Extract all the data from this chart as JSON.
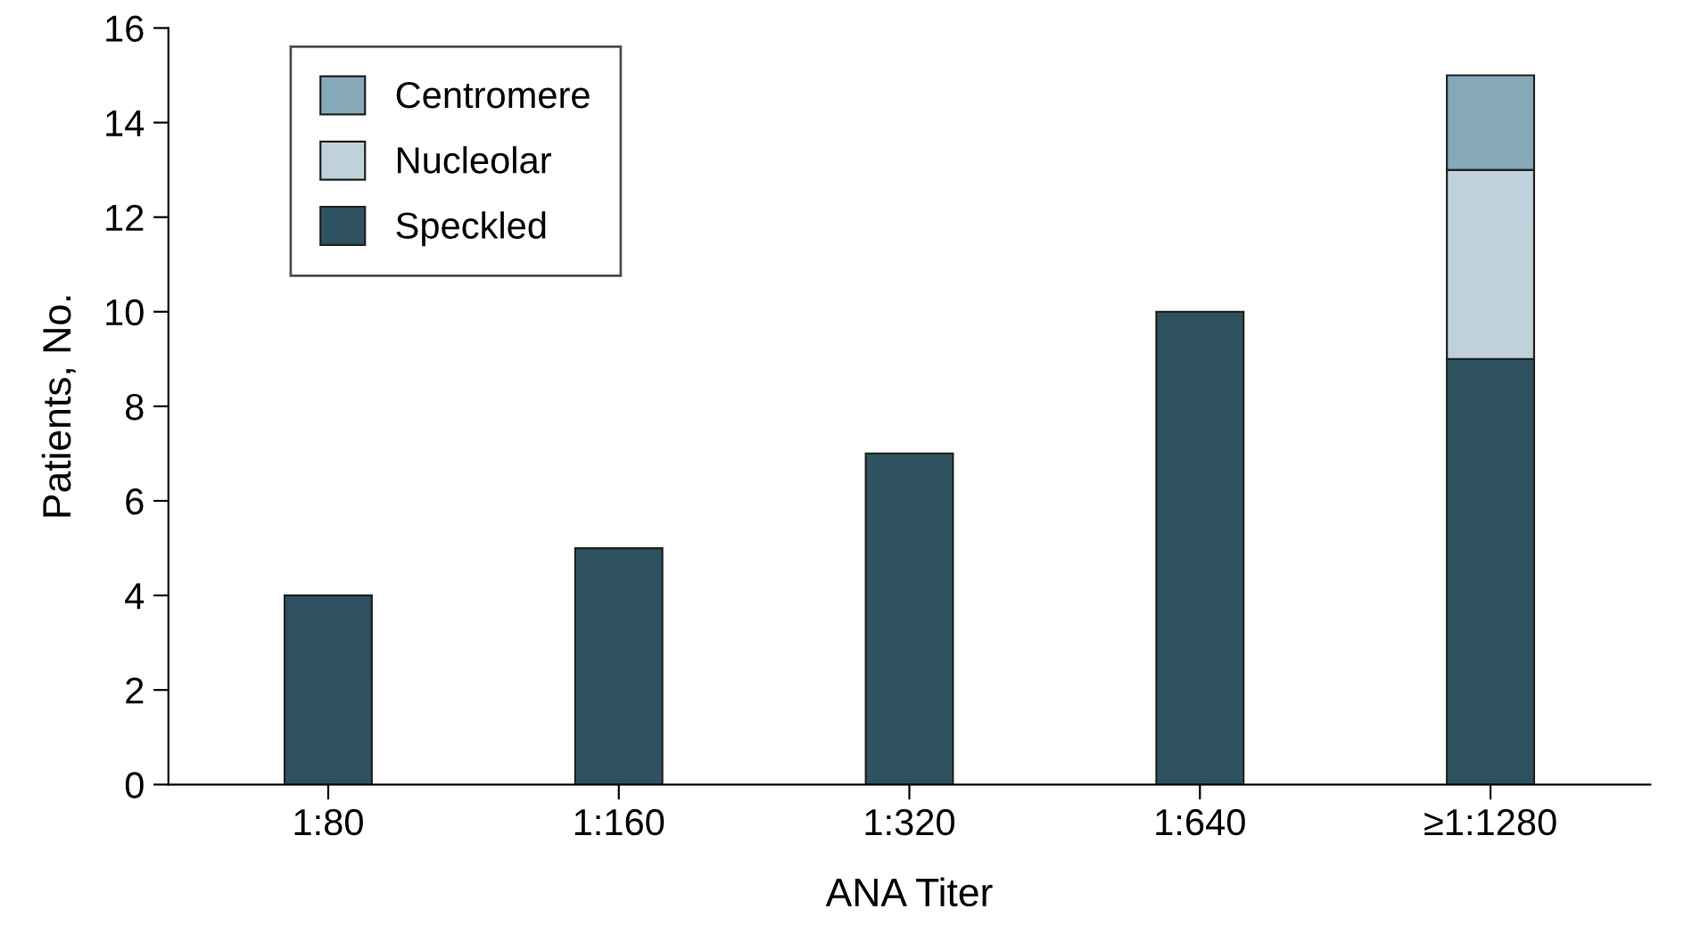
{
  "chart_data": {
    "type": "bar",
    "stacked": true,
    "xlabel": "ANA Titer",
    "ylabel": "Patients, No.",
    "categories": [
      "1:80",
      "1:160",
      "1:320",
      "1:640",
      "≥1:1280"
    ],
    "series": [
      {
        "name": "Speckled",
        "color": "#2e5260",
        "values": [
          4,
          5,
          7,
          10,
          9
        ]
      },
      {
        "name": "Nucleolar",
        "color": "#bfd1db",
        "values": [
          null,
          null,
          null,
          null,
          4
        ]
      },
      {
        "name": "Centromere",
        "color": "#86a9ba",
        "values": [
          null,
          null,
          null,
          null,
          2
        ]
      }
    ],
    "ylim": [
      0,
      16
    ],
    "yticks": [
      0,
      2,
      4,
      6,
      8,
      10,
      12,
      14,
      16
    ],
    "grid": false,
    "legend": "top left"
  }
}
